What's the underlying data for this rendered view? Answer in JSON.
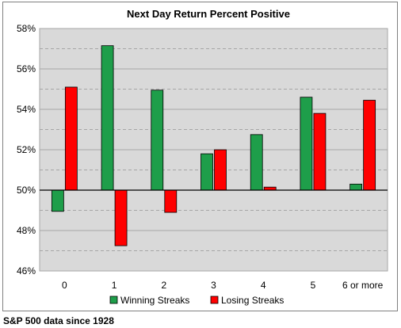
{
  "chart_data": {
    "type": "bar",
    "title": "Next Day Return Percent Positive",
    "categories": [
      "0",
      "1",
      "2",
      "3",
      "4",
      "5",
      "6 or more"
    ],
    "baseline": 50,
    "ylim": [
      46,
      58
    ],
    "yticks": [
      46,
      48,
      50,
      52,
      54,
      56,
      58
    ],
    "ytick_labels": [
      "46%",
      "48%",
      "50%",
      "52%",
      "54%",
      "56%",
      "58%"
    ],
    "series": [
      {
        "name": "Winning Streaks",
        "color": "#1e9e4a",
        "values": [
          48.95,
          57.15,
          54.95,
          51.8,
          52.75,
          54.6,
          50.3
        ]
      },
      {
        "name": "Losing Streaks",
        "color": "#ff0000",
        "values": [
          55.1,
          47.25,
          48.9,
          52.0,
          50.15,
          53.8,
          54.45
        ]
      }
    ],
    "grid": true,
    "plot_background": "#d9d9d9",
    "legend_position": "bottom"
  },
  "footnote": "S&P 500 data since 1928"
}
